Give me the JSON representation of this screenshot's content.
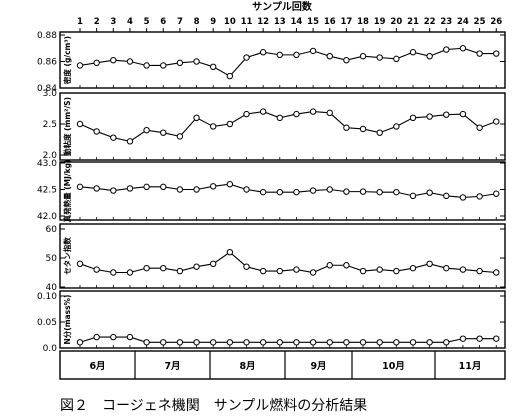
{
  "figure": {
    "top_axis_title": "サンプル回数",
    "caption": "図２　コージェネ機関　サンプル燃料の分析結果"
  },
  "chart_data": {
    "type": "line",
    "x": [
      1,
      2,
      3,
      4,
      5,
      6,
      7,
      8,
      9,
      10,
      11,
      12,
      13,
      14,
      15,
      16,
      17,
      18,
      19,
      20,
      21,
      22,
      23,
      24,
      25,
      26
    ],
    "x_tick_labels": [
      "1",
      "2",
      "3",
      "4",
      "5",
      "6",
      "7",
      "8",
      "9",
      "10",
      "11",
      "12",
      "13",
      "14",
      "15",
      "16",
      "17",
      "18",
      "19",
      "20",
      "21",
      "22",
      "23",
      "24",
      "25",
      "26"
    ],
    "months": [
      "6月",
      "7月",
      "8月",
      "9月",
      "10月",
      "11月"
    ],
    "panels": [
      {
        "ylabel": "密度 (g/cm³)",
        "ylim": [
          0.84,
          0.88
        ],
        "yticks": [
          "0.88",
          "0.86",
          "0.84"
        ],
        "values": [
          0.857,
          0.859,
          0.861,
          0.86,
          0.857,
          0.857,
          0.859,
          0.86,
          0.856,
          0.849,
          0.863,
          0.867,
          0.865,
          0.865,
          0.868,
          0.864,
          0.861,
          0.864,
          0.863,
          0.862,
          0.867,
          0.864,
          0.869,
          0.87,
          0.866,
          0.866
        ]
      },
      {
        "ylabel": "動粘度 (mm²/S)",
        "ylim": [
          2.0,
          3.0
        ],
        "yticks": [
          "3.0",
          "2.5",
          "2.0"
        ],
        "values": [
          2.5,
          2.38,
          2.28,
          2.22,
          2.4,
          2.36,
          2.3,
          2.6,
          2.46,
          2.5,
          2.66,
          2.7,
          2.6,
          2.66,
          2.7,
          2.68,
          2.44,
          2.42,
          2.36,
          2.46,
          2.6,
          2.62,
          2.65,
          2.66,
          2.44,
          2.54
        ]
      },
      {
        "ylabel": "真発熱量 (MJ/kg)",
        "ylim": [
          42.0,
          43.0
        ],
        "yticks": [
          "43.0",
          "42.5",
          "42.0"
        ],
        "values": [
          42.55,
          42.52,
          42.48,
          42.52,
          42.55,
          42.55,
          42.5,
          42.5,
          42.56,
          42.6,
          42.5,
          42.45,
          42.45,
          42.45,
          42.48,
          42.5,
          42.46,
          42.46,
          42.45,
          42.45,
          42.38,
          42.44,
          42.38,
          42.35,
          42.37,
          42.42
        ]
      },
      {
        "ylabel": "セタン指数",
        "ylim": [
          40,
          60
        ],
        "yticks": [
          "60",
          "50",
          "40"
        ],
        "values": [
          48,
          46,
          45,
          45,
          46.5,
          46.5,
          45.5,
          47,
          48,
          52,
          47,
          45.5,
          45.5,
          46,
          45,
          47.5,
          47.5,
          45.5,
          46,
          45.5,
          46.5,
          48,
          46.5,
          46,
          45.5,
          45
        ]
      },
      {
        "ylabel": "N分(mass%)",
        "ylim": [
          0.0,
          0.1
        ],
        "yticks": [
          "0.10",
          "0.05",
          "0.0"
        ],
        "values": [
          0.011,
          0.021,
          0.021,
          0.021,
          0.011,
          0.011,
          0.011,
          0.011,
          0.011,
          0.011,
          0.011,
          0.011,
          0.011,
          0.011,
          0.011,
          0.011,
          0.011,
          0.011,
          0.011,
          0.011,
          0.011,
          0.011,
          0.011,
          0.018,
          0.018,
          0.018
        ]
      }
    ],
    "grid": false
  }
}
